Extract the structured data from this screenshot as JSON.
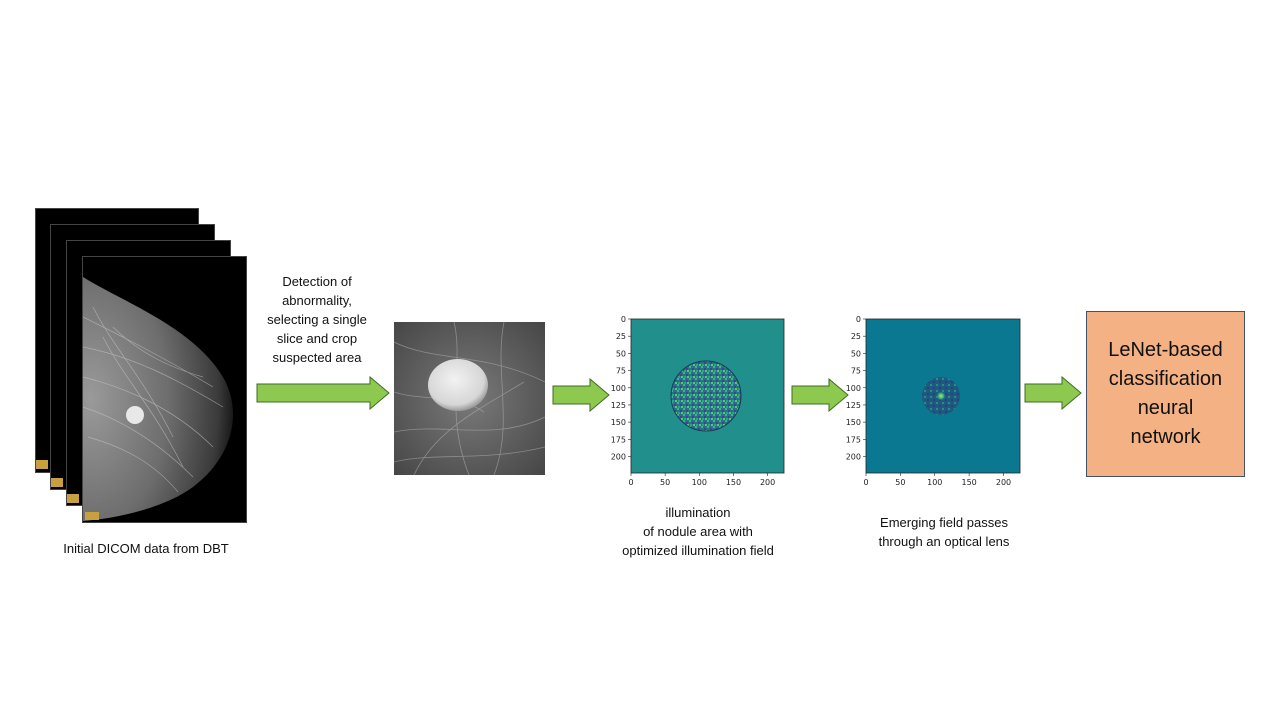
{
  "stage1": {
    "caption": "Initial DICOM data from DBT",
    "slice_count": 4
  },
  "stage2": {
    "caption": "Detection of\nabnormality,\nselecting a single\nslice and crop\nsuspected area"
  },
  "stage3": {
    "caption": "illumination\nof nodule area with\noptimized illumination field",
    "x_ticks": [
      "0",
      "50",
      "100",
      "150",
      "200"
    ],
    "y_ticks": [
      "0",
      "25",
      "50",
      "75",
      "100",
      "125",
      "150",
      "175",
      "200"
    ],
    "background_color": "#21908d"
  },
  "stage4": {
    "caption": "Emerging field passes\nthrough an optical lens",
    "x_ticks": [
      "0",
      "50",
      "100",
      "150",
      "200"
    ],
    "y_ticks": [
      "0",
      "25",
      "50",
      "75",
      "100",
      "125",
      "150",
      "175",
      "200"
    ],
    "background_color": "#0a7891"
  },
  "stage5": {
    "label": "LeNet-based\nclassification\nneural\nnetwork",
    "fill_color": "#f4b183"
  },
  "arrow_color": "#8dc94f"
}
